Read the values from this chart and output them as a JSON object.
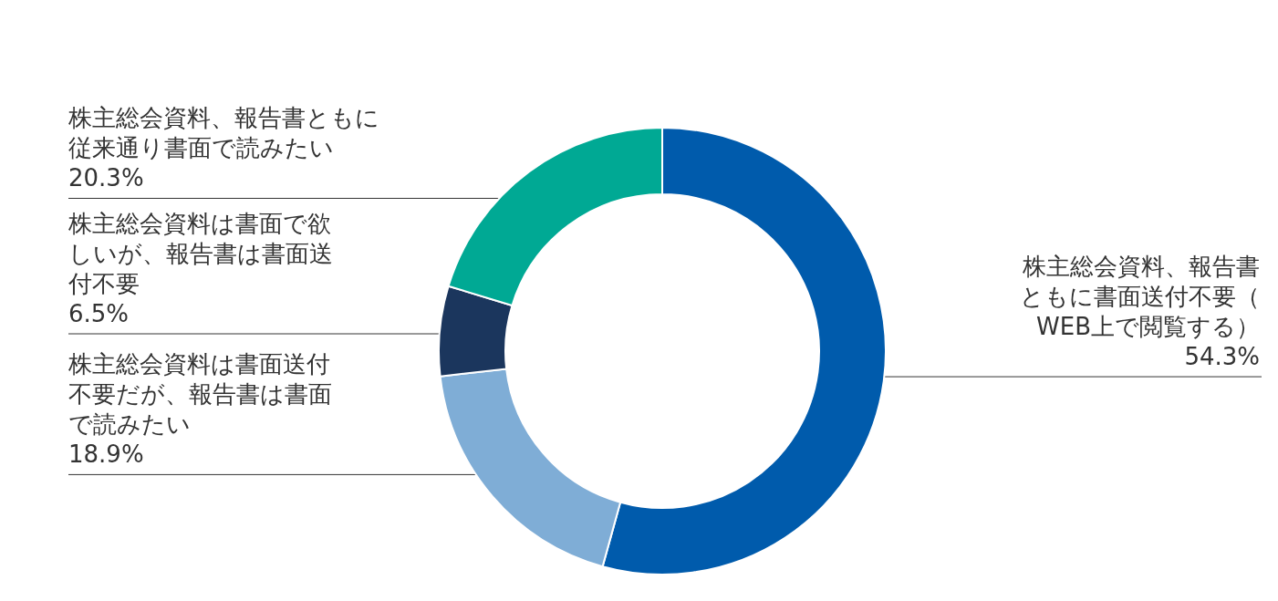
{
  "chart_data": {
    "type": "donut",
    "categories": [
      "株主総会資料、報告書ともに書面送付不要（WEB上で閲覧する）",
      "株主総会資料は書面送付不要だが、報告書は書面で読みたい",
      "株主総会資料は書面で欲しいが、報告書は書面送付不要",
      "株主総会資料、報告書ともに従来通り書面で読みたい"
    ],
    "values": [
      54.3,
      18.9,
      6.5,
      20.3
    ],
    "value_labels": [
      "54.3%",
      "18.9%",
      "6.5%",
      "20.3%"
    ],
    "colors": [
      "#005bac",
      "#7fadd6",
      "#1b365d",
      "#00a994"
    ],
    "legend": false
  }
}
